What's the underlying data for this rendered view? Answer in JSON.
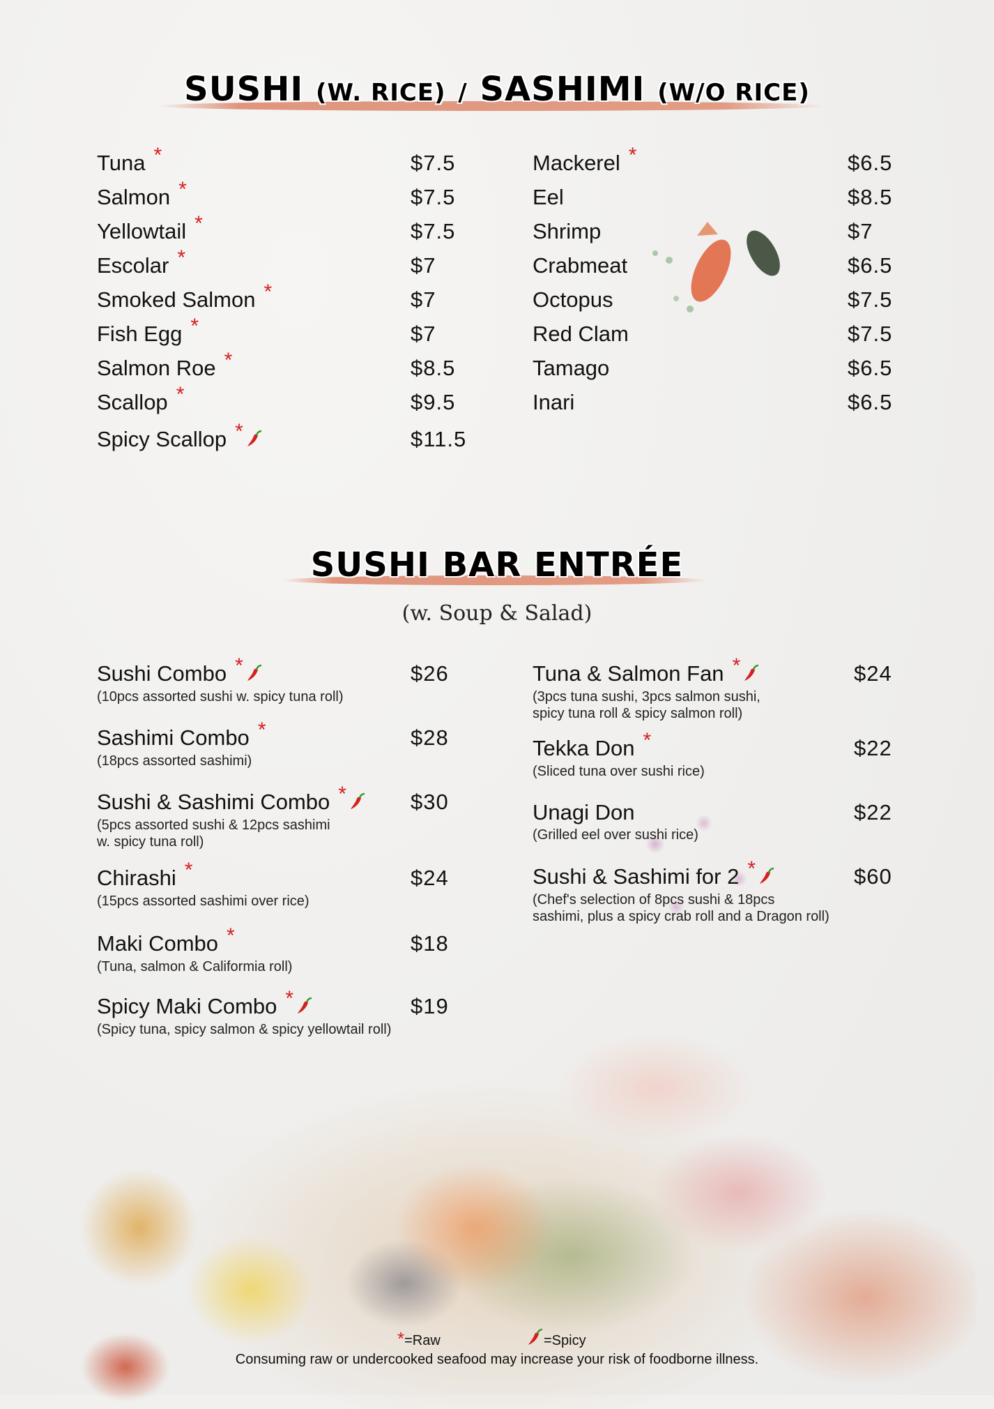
{
  "sushi_section": {
    "title_main1": "SUSHI",
    "title_sub1": "(W. RICE)",
    "title_sep": "/",
    "title_main2": "SASHIMI",
    "title_sub2": "(W/O RICE)",
    "left_items": [
      {
        "name": "Tuna",
        "price": "$7.5",
        "raw": true,
        "spicy": false
      },
      {
        "name": "Salmon",
        "price": "$7.5",
        "raw": true,
        "spicy": false
      },
      {
        "name": "Yellowtail",
        "price": "$7.5",
        "raw": true,
        "spicy": false
      },
      {
        "name": "Escolar",
        "price": "$7",
        "raw": true,
        "spicy": false
      },
      {
        "name": "Smoked Salmon",
        "price": "$7",
        "raw": true,
        "spicy": false
      },
      {
        "name": "Fish Egg",
        "price": "$7",
        "raw": true,
        "spicy": false
      },
      {
        "name": "Salmon Roe",
        "price": "$8.5",
        "raw": true,
        "spicy": false
      },
      {
        "name": "Scallop",
        "price": "$9.5",
        "raw": true,
        "spicy": false
      },
      {
        "name": "Spicy Scallop",
        "price": "$11.5",
        "raw": true,
        "spicy": true
      }
    ],
    "right_items": [
      {
        "name": "Mackerel",
        "price": "$6.5",
        "raw": true,
        "spicy": false
      },
      {
        "name": "Eel",
        "price": "$8.5",
        "raw": false,
        "spicy": false
      },
      {
        "name": "Shrimp",
        "price": "$7",
        "raw": false,
        "spicy": false
      },
      {
        "name": "Crabmeat",
        "price": "$6.5",
        "raw": false,
        "spicy": false
      },
      {
        "name": "Octopus",
        "price": "$7.5",
        "raw": false,
        "spicy": false
      },
      {
        "name": "Red Clam",
        "price": "$7.5",
        "raw": false,
        "spicy": false
      },
      {
        "name": "Tamago",
        "price": "$6.5",
        "raw": false,
        "spicy": false
      },
      {
        "name": "Inari",
        "price": "$6.5",
        "raw": false,
        "spicy": false
      }
    ]
  },
  "entree_section": {
    "title": "SUSHI BAR ENTRÉE",
    "subtitle": "(w. Soup & Salad)",
    "left_items": [
      {
        "name": "Sushi Combo",
        "price": "$26",
        "raw": true,
        "spicy": true,
        "desc": "(10pcs assorted sushi w. spicy tuna roll)"
      },
      {
        "name": "Sashimi Combo",
        "price": "$28",
        "raw": true,
        "spicy": false,
        "desc": "(18pcs assorted sashimi)"
      },
      {
        "name": "Sushi & Sashimi Combo",
        "price": "$30",
        "raw": true,
        "spicy": true,
        "desc": "(5pcs assorted sushi & 12pcs sashimi\nw. spicy tuna roll)"
      },
      {
        "name": "Chirashi",
        "price": "$24",
        "raw": true,
        "spicy": false,
        "desc": "(15pcs assorted sashimi over rice)"
      },
      {
        "name": "Maki Combo",
        "price": "$18",
        "raw": true,
        "spicy": false,
        "desc": "(Tuna, salmon & Califormia roll)"
      },
      {
        "name": "Spicy Maki Combo",
        "price": "$19",
        "raw": true,
        "spicy": true,
        "desc": "(Spicy tuna, spicy salmon & spicy yellowtail roll)"
      }
    ],
    "right_items": [
      {
        "name": "Tuna & Salmon Fan",
        "price": "$24",
        "raw": true,
        "spicy": true,
        "desc": "(3pcs tuna sushi, 3pcs salmon sushi,\nspicy tuna roll & spicy salmon roll)"
      },
      {
        "name": "Tekka Don",
        "price": "$22",
        "raw": true,
        "spicy": false,
        "desc": "(Sliced tuna over sushi rice)"
      },
      {
        "name": "Unagi Don",
        "price": "$22",
        "raw": false,
        "spicy": false,
        "desc": "(Grilled eel over sushi rice)"
      },
      {
        "name": "Sushi & Sashimi for 2",
        "price": "$60",
        "raw": true,
        "spicy": true,
        "desc": "(Chef's selection of 8pcs sushi & 18pcs\nsashimi, plus a spicy crab roll and a Dragon roll)"
      }
    ]
  },
  "footer": {
    "raw_symbol": "*",
    "raw_label": "=Raw",
    "spicy_label": "=Spicy",
    "disclaimer": "Consuming raw or undercooked seafood may increase your risk of  foodborne illness."
  },
  "colors": {
    "raw_marker": "#d42020",
    "brush_stroke": "#e0967e",
    "chili": "#d42020"
  }
}
